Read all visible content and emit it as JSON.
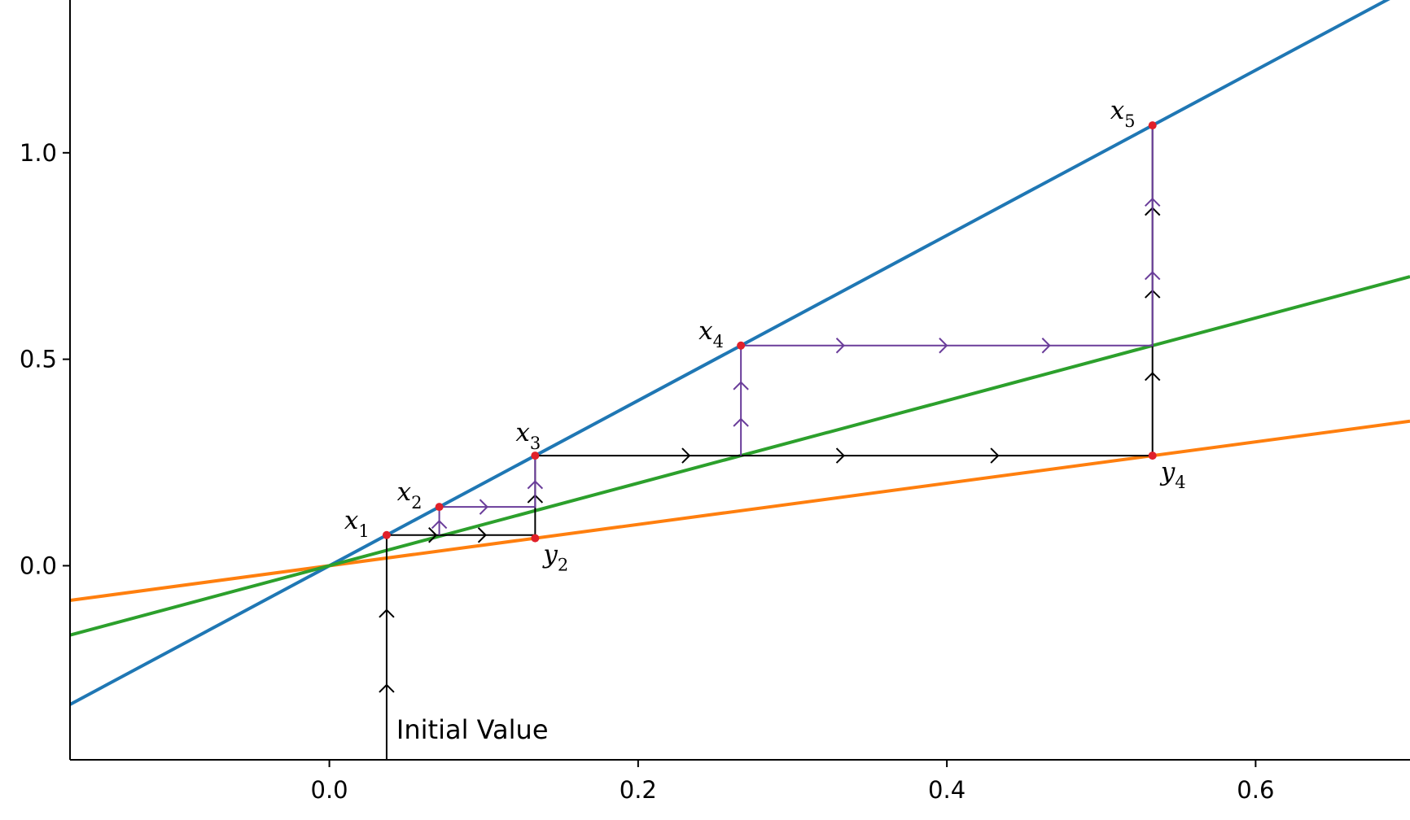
{
  "chart_data": {
    "type": "line",
    "xlim": [
      -0.168,
      0.7
    ],
    "ylim": [
      -0.47,
      1.37
    ],
    "x_ticks": [
      0.0,
      0.2,
      0.4,
      0.6
    ],
    "x_tick_labels": [
      "0.0",
      "0.2",
      "0.4",
      "0.6"
    ],
    "y_ticks": [
      0.0,
      0.5,
      1.0
    ],
    "y_tick_labels": [
      "0.0",
      "0.5",
      "1.0"
    ],
    "grid": false,
    "series": [
      {
        "color": "#1f77b4",
        "x": [
          -0.168,
          0.7
        ],
        "y": [
          -0.336,
          1.4
        ]
      },
      {
        "color": "#ff7f0e",
        "x": [
          -0.168,
          0.7
        ],
        "y": [
          -0.084,
          0.35
        ]
      },
      {
        "color": "#2ca02c",
        "x": [
          -0.168,
          0.7
        ],
        "y": [
          -0.168,
          0.7
        ]
      }
    ],
    "paths": [
      {
        "color": "#000000",
        "points": [
          [
            0.0371,
            -0.47
          ],
          [
            0.0371,
            0.0742
          ],
          [
            0.1333,
            0.0742
          ],
          [
            0.1333,
            0.2666
          ],
          [
            0.5332,
            0.2666
          ],
          [
            0.5332,
            1.0664
          ]
        ]
      },
      {
        "color": "#6a3d9a",
        "points": [
          [
            0.0712,
            0.0742
          ],
          [
            0.0712,
            0.1424
          ],
          [
            0.1333,
            0.1424
          ],
          [
            0.1333,
            0.2666
          ]
        ]
      },
      {
        "color": "#6a3d9a",
        "points": [
          [
            0.2666,
            0.2666
          ],
          [
            0.2666,
            0.5332
          ],
          [
            0.5332,
            0.5332
          ],
          [
            0.5332,
            1.0664
          ]
        ]
      }
    ],
    "points": [
      {
        "label": "x",
        "sub": "1",
        "x": 0.0371,
        "y": 0.0742,
        "anchor": "left"
      },
      {
        "label": "x",
        "sub": "2",
        "x": 0.0712,
        "y": 0.1424,
        "anchor": "left"
      },
      {
        "label": "x",
        "sub": "3",
        "x": 0.1333,
        "y": 0.2666,
        "anchor": "above"
      },
      {
        "label": "x",
        "sub": "4",
        "x": 0.2666,
        "y": 0.5332,
        "anchor": "left"
      },
      {
        "label": "x",
        "sub": "5",
        "x": 0.5332,
        "y": 1.0664,
        "anchor": "left"
      },
      {
        "label": "y",
        "sub": "2",
        "x": 0.1333,
        "y": 0.0667,
        "anchor": "below-right"
      },
      {
        "label": "y",
        "sub": "4",
        "x": 0.5332,
        "y": 0.2666,
        "anchor": "below-right"
      }
    ],
    "point_color": "#e0202a",
    "annotation": {
      "text": "Initial Value",
      "x": 0.0371,
      "y": -0.47
    }
  }
}
